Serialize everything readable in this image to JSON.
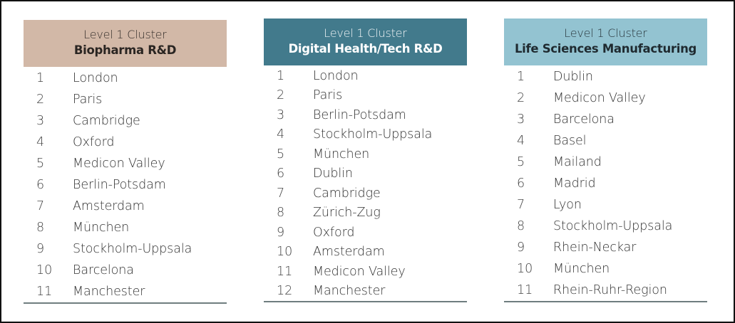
{
  "columns": [
    {
      "header_level": "Level 1 Cluster",
      "header_name": "Biopharma R&D",
      "header_color": "#d2b8a7",
      "rows": [
        {
          "rank": "1",
          "city": "London"
        },
        {
          "rank": "2",
          "city": "Paris"
        },
        {
          "rank": "3",
          "city": "Cambridge"
        },
        {
          "rank": "4",
          "city": "Oxford"
        },
        {
          "rank": "5",
          "city": "Medicon Valley"
        },
        {
          "rank": "6",
          "city": "Berlin-Potsdam"
        },
        {
          "rank": "7",
          "city": "Amsterdam"
        },
        {
          "rank": "8",
          "city": "München"
        },
        {
          "rank": "9",
          "city": "Stockholm-Uppsala"
        },
        {
          "rank": "10",
          "city": "Barcelona"
        },
        {
          "rank": "11",
          "city": "Manchester"
        }
      ]
    },
    {
      "header_level": "Level 1 Cluster",
      "header_name": "Digital Health/Tech R&D",
      "header_color": "#427a8c",
      "rows": [
        {
          "rank": "1",
          "city": "London"
        },
        {
          "rank": "2",
          "city": "Paris"
        },
        {
          "rank": "3",
          "city": "Berlin-Potsdam"
        },
        {
          "rank": "4",
          "city": "Stockholm-Uppsala"
        },
        {
          "rank": "5",
          "city": "München"
        },
        {
          "rank": "6",
          "city": "Dublin"
        },
        {
          "rank": "7",
          "city": "Cambridge"
        },
        {
          "rank": "8",
          "city": "Zürich-Zug"
        },
        {
          "rank": "9",
          "city": "Oxford"
        },
        {
          "rank": "10",
          "city": "Amsterdam"
        },
        {
          "rank": "11",
          "city": "Medicon Valley"
        },
        {
          "rank": "12",
          "city": "Manchester"
        }
      ]
    },
    {
      "header_level": "Level 1 Cluster",
      "header_name": "Life Sciences Manufacturing",
      "header_color": "#93c3d1",
      "rows": [
        {
          "rank": "1",
          "city": "Dublin"
        },
        {
          "rank": "2",
          "city": "Medicon Valley"
        },
        {
          "rank": "3",
          "city": "Barcelona"
        },
        {
          "rank": "4",
          "city": "Basel"
        },
        {
          "rank": "5",
          "city": "Mailand"
        },
        {
          "rank": "6",
          "city": "Madrid"
        },
        {
          "rank": "7",
          "city": "Lyon"
        },
        {
          "rank": "8",
          "city": "Stockholm-Uppsala"
        },
        {
          "rank": "9",
          "city": "Rhein-Neckar"
        },
        {
          "rank": "10",
          "city": "München"
        },
        {
          "rank": "11",
          "city": "Rhein-Ruhr-Region"
        }
      ]
    }
  ]
}
